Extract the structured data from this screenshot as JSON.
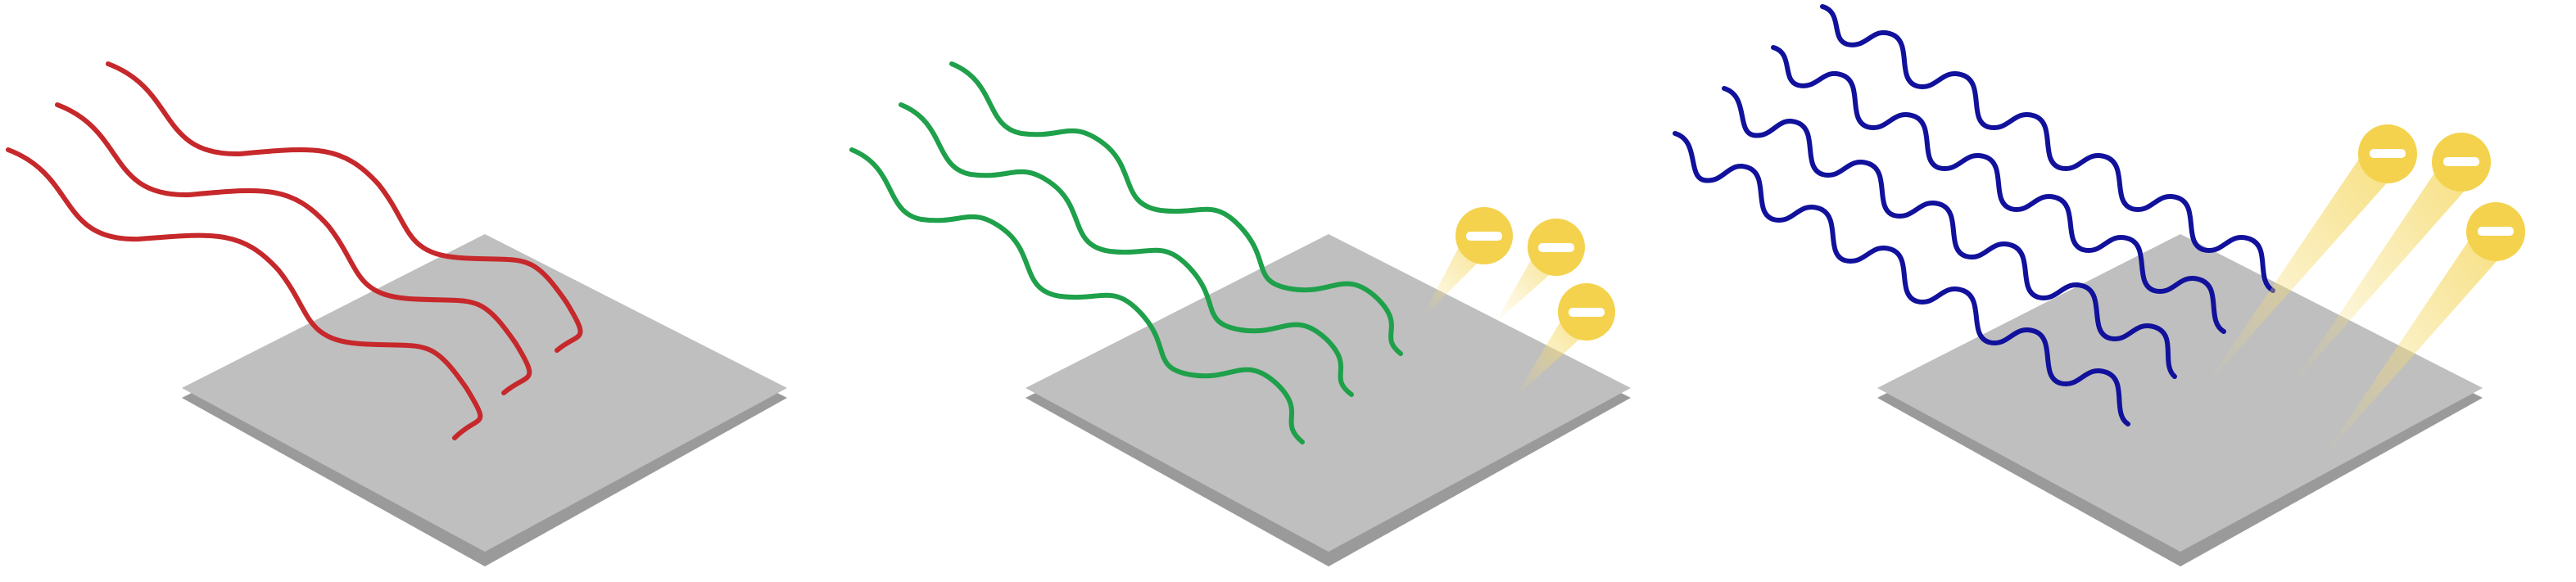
{
  "colors": {
    "background": "#ffffff",
    "plate_top": "#bfbfbf",
    "plate_side": "#9a9a9a",
    "wave_red": "#c6282b",
    "wave_green": "#1fa04a",
    "wave_blue": "#11119c",
    "electron": "#f4d24e",
    "electron_sign": "#ffffff",
    "beam": "#f6dc73"
  },
  "panels": [
    {
      "name": "red-light-panel",
      "wave_color": "wave_red",
      "wave_count": 3,
      "electrons_emitted": 0,
      "electron_symbol": "−"
    },
    {
      "name": "green-light-panel",
      "wave_color": "wave_green",
      "wave_count": 3,
      "electrons_emitted": 3,
      "electron_symbol": "−"
    },
    {
      "name": "blue-light-panel",
      "wave_color": "wave_blue",
      "wave_count": 4,
      "electrons_emitted": 3,
      "electron_symbol": "−"
    }
  ]
}
